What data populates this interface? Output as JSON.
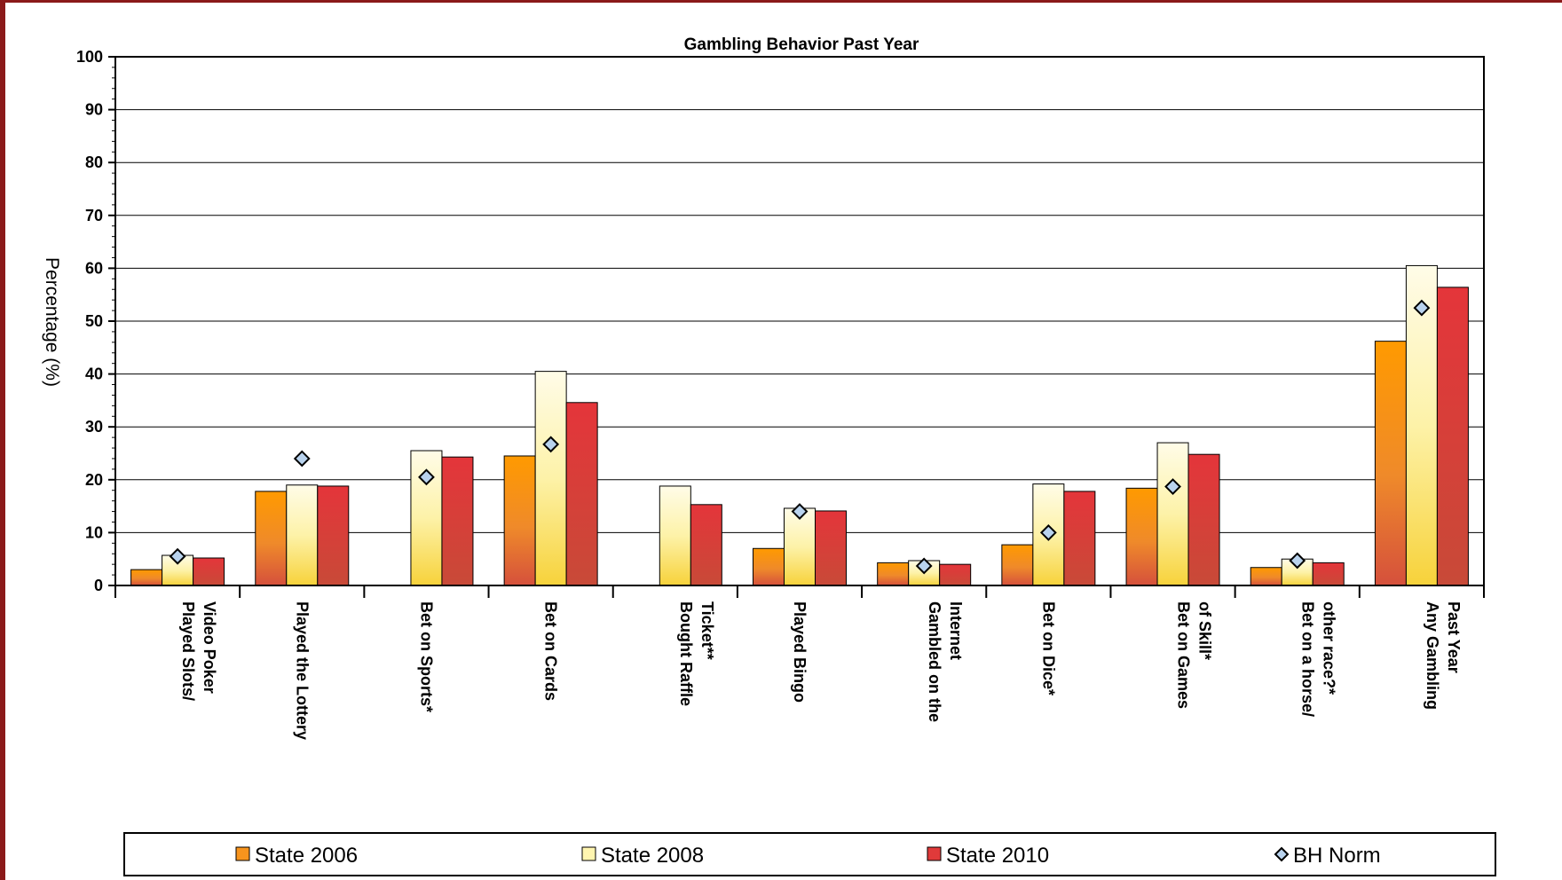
{
  "chart_data": {
    "type": "bar",
    "title": "Gambling Behavior Past Year",
    "ylabel": "Percentage (%)",
    "xlabel": "",
    "ylim": [
      0,
      100
    ],
    "ytick_step": 10,
    "grid": true,
    "legend_position": "bottom",
    "categories": [
      [
        "Played Slots/",
        "Video Poker"
      ],
      [
        "Played the Lottery"
      ],
      [
        "Bet on Sports*"
      ],
      [
        "Bet on Cards"
      ],
      [
        "Bought Raffle",
        "Ticket**"
      ],
      [
        "Played Bingo"
      ],
      [
        "Gambled on the",
        "Internet"
      ],
      [
        "Bet on Dice*"
      ],
      [
        "Bet on Games",
        "of Skill*"
      ],
      [
        "Bet on a horse/",
        "other race?*"
      ],
      [
        "Any Gambling",
        "Past Year"
      ]
    ],
    "series": [
      {
        "name": "State 2006",
        "kind": "bar",
        "color": "#f7941d",
        "values": [
          3.0,
          17.8,
          null,
          24.5,
          null,
          7.0,
          4.3,
          7.7,
          18.4,
          3.4,
          46.2
        ]
      },
      {
        "name": "State 2008",
        "kind": "bar",
        "color": "#fff5b0",
        "values": [
          5.7,
          19.0,
          25.5,
          40.5,
          18.8,
          14.6,
          4.7,
          19.2,
          27.0,
          5.0,
          60.5
        ]
      },
      {
        "name": "State 2010",
        "kind": "bar",
        "color": "#e03a3a",
        "values": [
          5.2,
          18.8,
          24.3,
          34.6,
          15.3,
          14.1,
          4.0,
          17.8,
          24.8,
          4.3,
          56.4
        ]
      },
      {
        "name": "BH Norm",
        "kind": "marker",
        "color": "#b9d3ee",
        "values": [
          5.5,
          24.0,
          20.5,
          26.7,
          null,
          14.0,
          3.7,
          10.0,
          18.7,
          4.7,
          52.5
        ]
      }
    ]
  }
}
